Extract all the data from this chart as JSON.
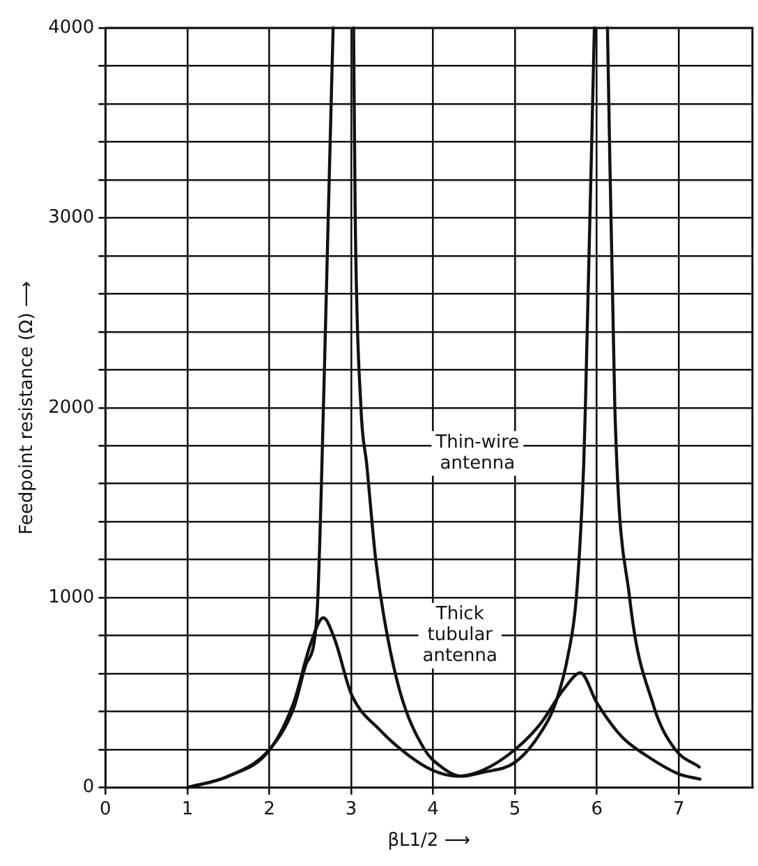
{
  "chart_data": {
    "type": "line",
    "xlabel": "βL1/2 ⟶",
    "ylabel": "Feedpoint resistance (Ω) ⟶",
    "xlim": [
      0,
      7.9
    ],
    "ylim": [
      0,
      4000
    ],
    "xticks": [
      0,
      1,
      2,
      3,
      4,
      5,
      6,
      7
    ],
    "yticks": [
      0,
      {
        "value": 200,
        "label": null
      },
      {
        "value": 400,
        "label": null
      },
      {
        "value": 600,
        "label": null
      },
      {
        "value": 800,
        "label": null
      },
      1000,
      {
        "value": 1200,
        "label": null
      },
      {
        "value": 1400,
        "label": null
      },
      {
        "value": 1600,
        "label": null
      },
      {
        "value": 1800,
        "label": null
      },
      2000,
      {
        "value": 2200,
        "label": null
      },
      {
        "value": 2400,
        "label": null
      },
      {
        "value": 2600,
        "label": null
      },
      {
        "value": 2800,
        "label": null
      },
      3000,
      {
        "value": 3200,
        "label": null
      },
      {
        "value": 3400,
        "label": null
      },
      {
        "value": 3600,
        "label": null
      },
      {
        "value": 3800,
        "label": null
      },
      4000
    ],
    "grid": true,
    "legend": false,
    "marker": "none",
    "line_style": "solid",
    "series": [
      {
        "color": "#111111",
        "x": [
          1,
          1.5,
          2,
          2.3,
          2.45,
          2.58,
          2.67,
          2.72,
          2.78,
          3.0,
          3.03,
          3.05,
          3.12,
          3.19,
          3.3,
          3.4,
          3.6,
          3.89,
          4.1,
          4.35,
          4.6,
          5.0,
          5.3,
          5.5,
          5.65,
          5.75,
          5.84,
          5.86,
          5.97,
          6.0,
          6.13,
          6.22,
          6.4,
          6.69,
          6.95,
          7.25
        ],
        "values": [
          0,
          60,
          200,
          420,
          650,
          894,
          2139,
          3000,
          4000,
          null,
          4000,
          3000,
          2000,
          1703,
          1200,
          900,
          500,
          205,
          110,
          60,
          80,
          133,
          280,
          450,
          700,
          1002,
          1703,
          2000,
          4000,
          null,
          4000,
          2000,
          1002,
          435,
          205,
          109
        ]
      },
      {
        "color": "#111111",
        "x": [
          1,
          1.5,
          2,
          2.3,
          2.5,
          2.66,
          2.8,
          3.0,
          3.35,
          3.7,
          4.0,
          4.3,
          4.6,
          5.0,
          5.3,
          5.6,
          5.8,
          6.0,
          6.3,
          6.6,
          7.0,
          7.26
        ],
        "values": [
          0,
          60,
          196,
          450,
          750,
          894,
          780,
          495,
          304,
          170,
          90,
          60,
          90,
          200,
          330,
          520,
          604,
          447,
          270,
          170,
          72,
          45
        ]
      }
    ],
    "annotations": [
      "Thin-wire\nantenna",
      "Thick\ntubular\nantenna"
    ]
  }
}
